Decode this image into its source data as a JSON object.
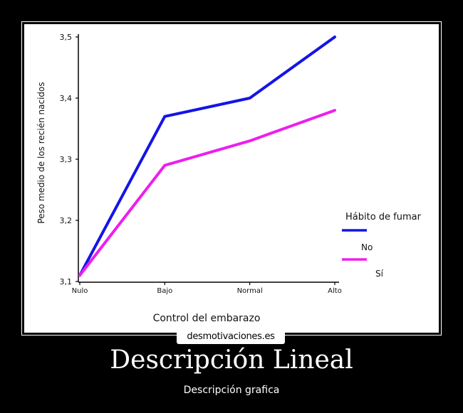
{
  "poster": {
    "title": "Descripción Lineal",
    "subtitle": "Descripción grafica",
    "watermark": "desmotivaciones.es"
  },
  "colors": {
    "no": "#1414e6",
    "si": "#ee1eee"
  },
  "chart_data": {
    "type": "line",
    "xlabel": "Control del embarazo",
    "ylabel": "Peso medio de los recién nacidos",
    "categories": [
      "Nulo",
      "Bajo",
      "Normal",
      "Alto"
    ],
    "ylim": [
      3.1,
      3.5
    ],
    "yticks": [
      "3,1",
      "3,2",
      "3,3",
      "3,4",
      "3,5"
    ],
    "grid": false,
    "legend": {
      "title": "Hábito de fumar",
      "position": "right"
    },
    "series": [
      {
        "name": "No",
        "values": [
          3.11,
          3.37,
          3.4,
          3.5
        ]
      },
      {
        "name": "Sí",
        "values": [
          3.11,
          3.29,
          3.33,
          3.38
        ]
      }
    ]
  }
}
